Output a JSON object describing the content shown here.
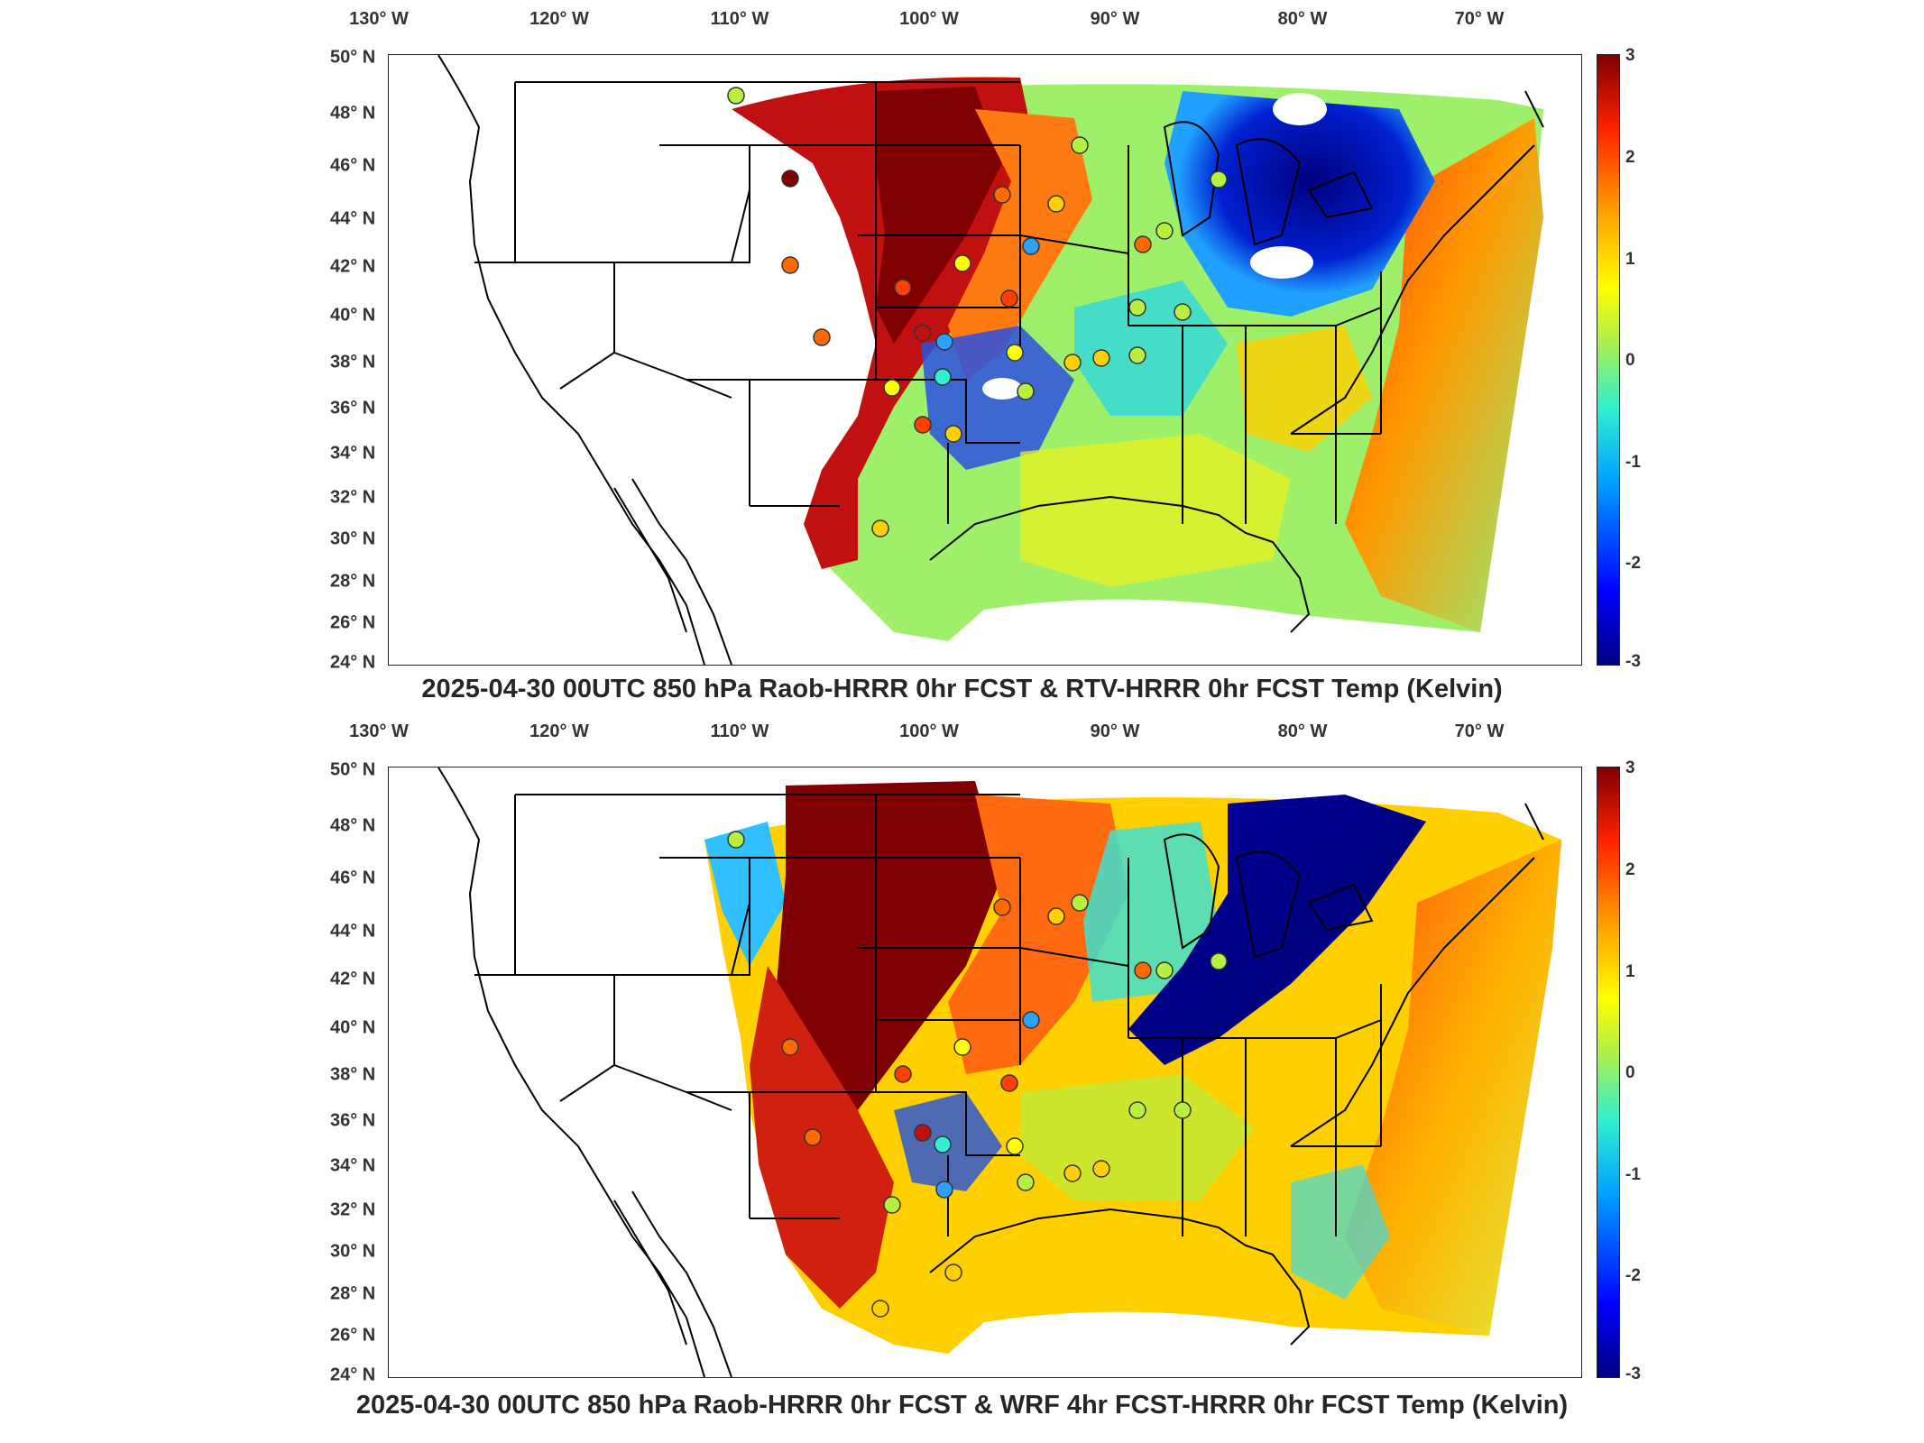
{
  "panels": [
    {
      "id": "top",
      "title": "2025-04-30 00UTC 850 hPa Raob-HRRR 0hr FCST & RTV-HRRR 0hr FCST Temp (Kelvin)",
      "colorbar_ticks": [
        "3",
        "2",
        "1",
        "0",
        "-1",
        "-2",
        "-3"
      ],
      "lon_labels": [
        "130° W",
        "120° W",
        "110° W",
        "100° W",
        "90° W",
        "80° W",
        "70° W"
      ],
      "lat_labels": [
        "50° N",
        "48° N",
        "46° N",
        "44° N",
        "42° N",
        "40° N",
        "38° N",
        "36° N",
        "34° N",
        "32° N",
        "30° N",
        "28° N",
        "26° N",
        "24° N"
      ]
    },
    {
      "id": "bottom",
      "title": "2025-04-30 00UTC 850 hPa Raob-HRRR 0hr FCST & WRF 4hr FCST-HRRR 0hr FCST Temp (Kelvin)",
      "colorbar_ticks": [
        "3",
        "2",
        "1",
        "0",
        "-1",
        "-2",
        "-3"
      ],
      "lon_labels": [
        "130° W",
        "120° W",
        "110° W",
        "100° W",
        "90° W",
        "80° W",
        "70° W"
      ],
      "lat_labels": [
        "50° N",
        "48° N",
        "46° N",
        "44° N",
        "42° N",
        "40° N",
        "38° N",
        "36° N",
        "34° N",
        "32° N",
        "30° N",
        "28° N",
        "26° N",
        "24° N"
      ]
    }
  ],
  "colorbar_range": [
    -3,
    3
  ],
  "colormap": "jet",
  "colors": {
    "dark_red": "#7f0000",
    "red": "#ff2000",
    "orange": "#ff9a00",
    "yellow": "#ffff00",
    "green": "#b8f040",
    "cyan": "#2ff0d0",
    "blue": "#0000ff",
    "navy": "#00007f"
  }
}
